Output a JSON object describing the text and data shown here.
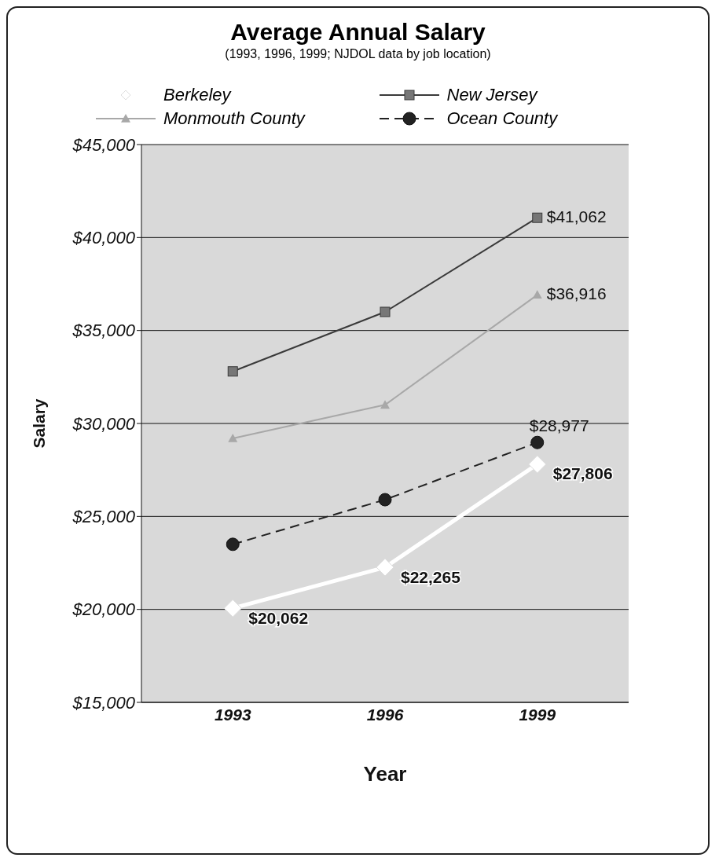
{
  "chart_data": {
    "type": "line",
    "title": "Average Annual Salary",
    "subtitle": "(1993, 1996, 1999; NJDOL data by job location)",
    "xlabel": "Year",
    "ylabel": "Salary",
    "categories": [
      "1993",
      "1996",
      "1999"
    ],
    "series": [
      {
        "name": "Berkeley",
        "color": "#ffffff",
        "marker": "diamond",
        "line_style": "solid",
        "values": [
          20062,
          22265,
          27806
        ],
        "value_labels": [
          "$20,062",
          "$22,265",
          "$27,806"
        ]
      },
      {
        "name": "New Jersey",
        "color": "#3a3a3a",
        "marker": "square",
        "line_style": "solid",
        "values": [
          32800,
          36000,
          41062
        ],
        "value_labels": [
          null,
          null,
          "$41,062"
        ]
      },
      {
        "name": "Monmouth County",
        "color": "#a8a8a8",
        "marker": "triangle",
        "line_style": "solid",
        "values": [
          29200,
          31000,
          36916
        ],
        "value_labels": [
          null,
          null,
          "$36,916"
        ]
      },
      {
        "name": "Ocean County",
        "color": "#222222",
        "marker": "circle",
        "line_style": "dashed",
        "values": [
          23500,
          25900,
          28977
        ],
        "value_labels": [
          null,
          null,
          "$28,977"
        ]
      }
    ],
    "ylim": [
      15000,
      45000
    ],
    "yticks": [
      {
        "value": 15000,
        "label": "$15,000"
      },
      {
        "value": 20000,
        "label": "$20,000"
      },
      {
        "value": 25000,
        "label": "$25,000"
      },
      {
        "value": 30000,
        "label": "$30,000"
      },
      {
        "value": 35000,
        "label": "$35,000"
      },
      {
        "value": 40000,
        "label": "$40,000"
      },
      {
        "value": 45000,
        "label": "$45,000"
      }
    ],
    "grid": "y",
    "legend": "top"
  }
}
